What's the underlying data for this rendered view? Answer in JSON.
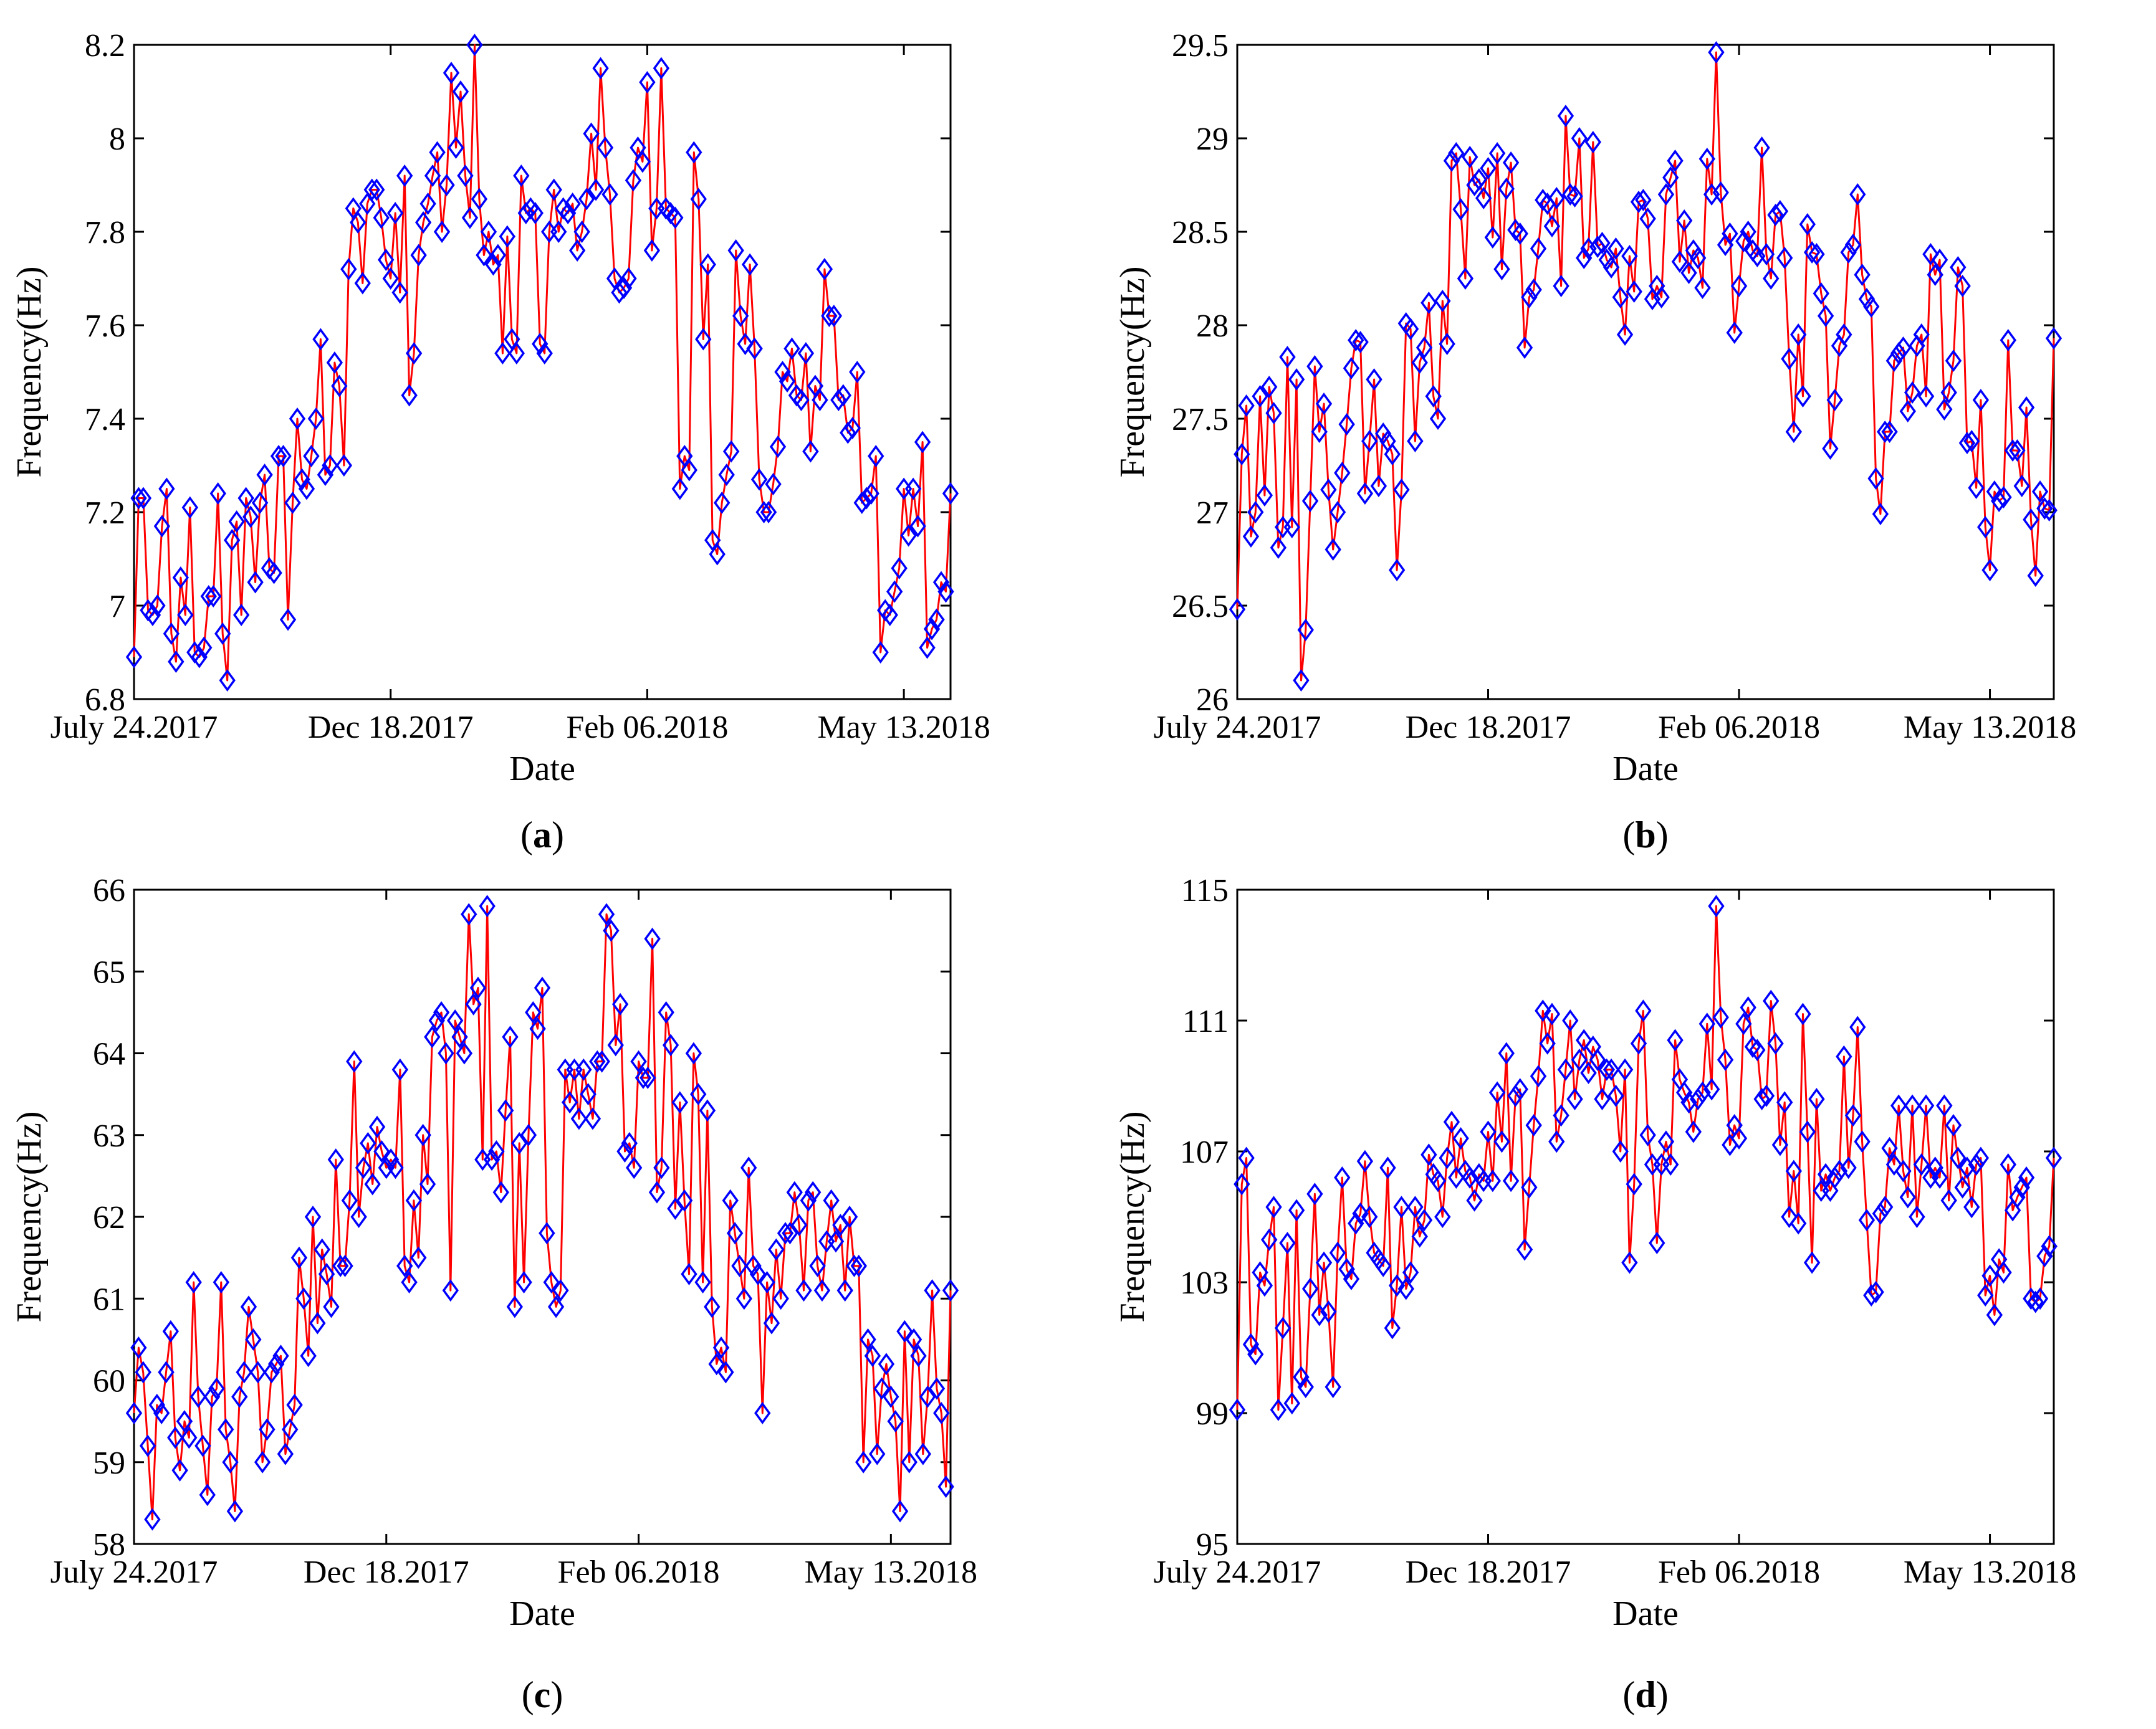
{
  "figure": {
    "series_color": "#ff0000",
    "marker_color": "#0000ff",
    "marker": "diamond"
  },
  "chart_data": [
    {
      "type": "line",
      "caption": "a",
      "xlabel": "Date",
      "ylabel": "Frequency(Hz)",
      "ylim": [
        6.8,
        8.2
      ],
      "yticks": [
        "6.8",
        "7",
        "7.2",
        "7.4",
        "7.6",
        "7.8",
        "8",
        "8.2"
      ],
      "xticks": [
        {
          "index": 0,
          "label": "July 24.2017"
        },
        {
          "index": 55,
          "label": "Dec 18.2017"
        },
        {
          "index": 110,
          "label": "Feb 06.2018"
        },
        {
          "index": 165,
          "label": "May 13.2018"
        }
      ],
      "grid": false,
      "series": [
        {
          "values": [
            6.89,
            7.23,
            7.23,
            6.99,
            6.98,
            7.0,
            7.17,
            7.25,
            6.94,
            6.88,
            7.06,
            6.98,
            7.21,
            6.9,
            6.89,
            6.91,
            7.02,
            7.02,
            7.24,
            6.94,
            6.84,
            7.14,
            7.18,
            6.98,
            7.23,
            7.19,
            7.05,
            7.22,
            7.28,
            7.08,
            7.07,
            7.32,
            7.32,
            6.97,
            7.22,
            7.4,
            7.27,
            7.25,
            7.32,
            7.4,
            7.57,
            7.28,
            7.3,
            7.52,
            7.47,
            7.3,
            7.72,
            7.85,
            7.82,
            7.69,
            7.86,
            7.89,
            7.89,
            7.83,
            7.74,
            7.7,
            7.84,
            7.67,
            7.92,
            7.45,
            7.54,
            7.75,
            7.82,
            7.86,
            7.92,
            7.97,
            7.8,
            7.9,
            8.14,
            7.98,
            8.1,
            7.92,
            7.83,
            8.2,
            7.87,
            7.75,
            7.8,
            7.73,
            7.75,
            7.54,
            7.79,
            7.57,
            7.54,
            7.92,
            7.84,
            7.85,
            7.84,
            7.56,
            7.54,
            7.8,
            7.89,
            7.8,
            7.85,
            7.84,
            7.86,
            7.76,
            7.8,
            7.87,
            8.01,
            7.89,
            8.15,
            7.98,
            7.88,
            7.7,
            7.67,
            7.68,
            7.7,
            7.91,
            7.98,
            7.95,
            8.12,
            7.76,
            7.85,
            8.15,
            7.85,
            7.84,
            7.83,
            7.25,
            7.32,
            7.29,
            7.97,
            7.87,
            7.57,
            7.73,
            7.14,
            7.11,
            7.22,
            7.28,
            7.33,
            7.76,
            7.62,
            7.56,
            7.73,
            7.55,
            7.27,
            7.2,
            7.2,
            7.26,
            7.34,
            7.5,
            7.48,
            7.55,
            7.45,
            7.44,
            7.54,
            7.33,
            7.47,
            7.44,
            7.72,
            7.62,
            7.62,
            7.44,
            7.45,
            7.37,
            7.38,
            7.5,
            7.22,
            7.23,
            7.24,
            7.32,
            6.9,
            6.99,
            6.98,
            7.03,
            7.08,
            7.25,
            7.15,
            7.25,
            7.17,
            7.35,
            6.91,
            6.95,
            6.97,
            7.05,
            7.03,
            7.24
          ]
        }
      ]
    },
    {
      "type": "line",
      "caption": "b",
      "xlabel": "Date",
      "ylabel": "Frequency(Hz)",
      "ylim": [
        26,
        29.5
      ],
      "yticks": [
        "26",
        "26.5",
        "27",
        "27.5",
        "28",
        "28.5",
        "29",
        "29.5"
      ],
      "xticks": [
        {
          "index": 0,
          "label": "July 24.2017"
        },
        {
          "index": 55,
          "label": "Dec 18.2017"
        },
        {
          "index": 110,
          "label": "Feb 06.2018"
        },
        {
          "index": 165,
          "label": "May 13.2018"
        }
      ],
      "grid": false,
      "series": [
        {
          "values": [
            26.48,
            27.31,
            27.57,
            26.87,
            27.0,
            27.62,
            27.09,
            27.67,
            27.53,
            26.81,
            26.92,
            27.83,
            26.92,
            27.71,
            26.1,
            26.37,
            27.06,
            27.78,
            27.43,
            27.58,
            27.12,
            26.8,
            27.0,
            27.21,
            27.47,
            27.77,
            27.92,
            27.91,
            27.1,
            27.38,
            27.71,
            27.14,
            27.42,
            27.38,
            27.31,
            26.69,
            27.12,
            28.01,
            27.98,
            27.38,
            27.8,
            27.88,
            28.12,
            27.62,
            27.5,
            28.13,
            27.9,
            28.88,
            28.92,
            28.62,
            28.25,
            28.9,
            28.75,
            28.78,
            28.68,
            28.84,
            28.47,
            28.92,
            28.3,
            28.73,
            28.87,
            28.51,
            28.49,
            27.88,
            28.15,
            28.19,
            28.41,
            28.67,
            28.65,
            28.53,
            28.68,
            28.21,
            29.12,
            28.7,
            28.69,
            29.0,
            28.36,
            28.41,
            28.98,
            28.42,
            28.44,
            28.35,
            28.31,
            28.41,
            28.15,
            27.95,
            28.37,
            28.18,
            28.66,
            28.67,
            28.57,
            28.14,
            28.21,
            28.15,
            28.7,
            28.79,
            28.88,
            28.34,
            28.56,
            28.28,
            28.4,
            28.36,
            28.2,
            28.89,
            28.7,
            29.46,
            28.71,
            28.43,
            28.49,
            27.96,
            28.21,
            28.45,
            28.5,
            28.4,
            28.37,
            28.95,
            28.38,
            28.25,
            28.59,
            28.61,
            28.36,
            27.82,
            27.43,
            27.95,
            27.62,
            28.54,
            28.39,
            28.38,
            28.17,
            28.05,
            27.34,
            27.6,
            27.89,
            27.95,
            28.39,
            28.43,
            28.7,
            28.27,
            28.14,
            28.1,
            27.18,
            26.99,
            27.43,
            27.43,
            27.81,
            27.85,
            27.88,
            27.54,
            27.64,
            27.89,
            27.95,
            27.62,
            28.38,
            28.27,
            28.35,
            27.55,
            27.64,
            27.81,
            28.31,
            28.21,
            27.37,
            27.38,
            27.13,
            27.6,
            26.92,
            26.69,
            27.11,
            27.06,
            27.08,
            27.92,
            27.33,
            27.33,
            27.14,
            27.56,
            26.96,
            26.66,
            27.11,
            27.02,
            27.01,
            27.93
          ]
        }
      ]
    },
    {
      "type": "line",
      "caption": "c",
      "xlabel": "Date",
      "ylabel": "Frequency(Hz)",
      "ylim": [
        58,
        66
      ],
      "yticks": [
        "58",
        "59",
        "60",
        "61",
        "62",
        "63",
        "64",
        "65",
        "66"
      ],
      "xticks": [
        {
          "index": 0,
          "label": "July 24.2017"
        },
        {
          "index": 55,
          "label": "Dec 18.2017"
        },
        {
          "index": 110,
          "label": "Feb 06.2018"
        },
        {
          "index": 165,
          "label": "May 13.2018"
        }
      ],
      "grid": false,
      "series": [
        {
          "values": [
            59.6,
            60.4,
            60.1,
            59.2,
            58.3,
            59.7,
            59.6,
            60.1,
            60.6,
            59.3,
            58.9,
            59.5,
            59.3,
            61.2,
            59.8,
            59.2,
            58.6,
            59.8,
            59.9,
            61.2,
            59.4,
            59.0,
            58.4,
            59.8,
            60.1,
            60.9,
            60.5,
            60.1,
            59.0,
            59.4,
            60.1,
            60.2,
            60.3,
            59.1,
            59.4,
            59.7,
            61.5,
            61.0,
            60.3,
            62.0,
            60.7,
            61.6,
            61.3,
            60.9,
            62.7,
            61.4,
            61.4,
            62.2,
            63.9,
            62.0,
            62.6,
            62.9,
            62.4,
            63.1,
            62.8,
            62.6,
            62.7,
            62.6,
            63.8,
            61.4,
            61.2,
            62.2,
            61.5,
            63.0,
            62.4,
            64.2,
            64.4,
            64.5,
            64.0,
            61.1,
            64.4,
            64.2,
            64.0,
            65.7,
            64.6,
            64.8,
            62.7,
            65.8,
            62.7,
            62.8,
            62.3,
            63.3,
            64.2,
            60.9,
            62.9,
            61.2,
            63.0,
            64.5,
            64.3,
            64.8,
            61.8,
            61.2,
            60.9,
            61.1,
            63.8,
            63.4,
            63.8,
            63.2,
            63.8,
            63.5,
            63.2,
            63.9,
            63.9,
            65.7,
            65.5,
            64.1,
            64.6,
            62.8,
            62.9,
            62.6,
            63.9,
            63.7,
            63.7,
            65.4,
            62.3,
            62.6,
            64.5,
            64.1,
            62.1,
            63.4,
            62.2,
            61.3,
            64.0,
            63.5,
            61.2,
            63.3,
            60.9,
            60.2,
            60.4,
            60.1,
            62.2,
            61.8,
            61.4,
            61.0,
            62.6,
            61.4,
            61.3,
            59.6,
            61.2,
            60.7,
            61.6,
            61.0,
            61.8,
            61.8,
            62.3,
            61.9,
            61.1,
            62.2,
            62.3,
            61.4,
            61.1,
            61.7,
            62.2,
            61.7,
            61.9,
            61.1,
            62.0,
            61.4,
            61.4,
            59.0,
            60.5,
            60.3,
            59.1,
            59.9,
            60.2,
            59.8,
            59.5,
            58.4,
            60.6,
            59.0,
            60.5,
            60.3,
            59.1,
            59.8,
            61.1,
            59.9,
            59.6,
            58.7,
            61.1
          ]
        }
      ]
    },
    {
      "type": "line",
      "caption": "d",
      "xlabel": "Date",
      "ylabel": "Frequency(Hz)",
      "ylim": [
        95,
        115
      ],
      "yticks": [
        "95",
        "99",
        "103",
        "107",
        "111",
        "115"
      ],
      "xticks": [
        {
          "index": 0,
          "label": "July 24.2017"
        },
        {
          "index": 55,
          "label": "Dec 18.2017"
        },
        {
          "index": 110,
          "label": "Feb 06.2018"
        },
        {
          "index": 165,
          "label": "May 13.2018"
        }
      ],
      "grid": false,
      "series": [
        {
          "values": [
            99.1,
            106.0,
            106.8,
            101.1,
            100.8,
            103.3,
            102.9,
            104.3,
            105.3,
            99.1,
            101.6,
            104.2,
            99.3,
            105.2,
            100.1,
            99.8,
            102.8,
            105.7,
            102.0,
            103.6,
            102.1,
            99.8,
            103.9,
            106.2,
            103.4,
            103.1,
            104.8,
            105.1,
            106.7,
            105.0,
            103.9,
            103.7,
            103.5,
            106.5,
            101.6,
            102.9,
            105.3,
            102.8,
            103.3,
            105.3,
            104.4,
            104.9,
            106.9,
            106.3,
            106.1,
            105.0,
            106.8,
            107.9,
            106.2,
            107.4,
            106.4,
            106.2,
            105.5,
            106.3,
            106.1,
            107.6,
            106.1,
            108.8,
            107.3,
            110.0,
            106.1,
            108.7,
            108.9,
            104.0,
            105.9,
            107.8,
            109.3,
            111.3,
            110.3,
            111.2,
            107.3,
            108.1,
            109.5,
            111.0,
            108.6,
            109.8,
            110.4,
            109.4,
            110.2,
            109.8,
            108.6,
            109.5,
            109.5,
            108.7,
            107.0,
            109.5,
            103.6,
            106.0,
            110.3,
            111.3,
            107.5,
            106.6,
            104.2,
            106.6,
            107.3,
            106.6,
            110.4,
            109.2,
            108.8,
            108.5,
            107.6,
            108.6,
            108.8,
            110.9,
            108.9,
            114.5,
            111.1,
            109.8,
            107.2,
            107.8,
            107.4,
            110.9,
            111.4,
            110.2,
            110.1,
            108.6,
            108.7,
            111.6,
            110.3,
            107.2,
            108.5,
            105.0,
            106.4,
            104.8,
            111.2,
            107.6,
            103.6,
            108.6,
            105.8,
            106.3,
            105.8,
            106.2,
            106.4,
            109.9,
            106.5,
            108.1,
            110.8,
            107.3,
            104.9,
            102.6,
            102.7,
            105.1,
            105.3,
            107.1,
            106.6,
            108.4,
            106.4,
            105.6,
            108.4,
            105.0,
            106.6,
            108.4,
            106.2,
            106.5,
            106.2,
            108.4,
            105.5,
            107.8,
            106.8,
            105.9,
            106.5,
            105.3,
            106.6,
            106.8,
            102.6,
            103.2,
            102.0,
            103.7,
            103.3,
            106.6,
            105.2,
            105.6,
            105.9,
            106.2,
            102.5,
            102.4,
            102.5,
            103.8,
            104.1,
            106.8
          ]
        }
      ]
    }
  ]
}
